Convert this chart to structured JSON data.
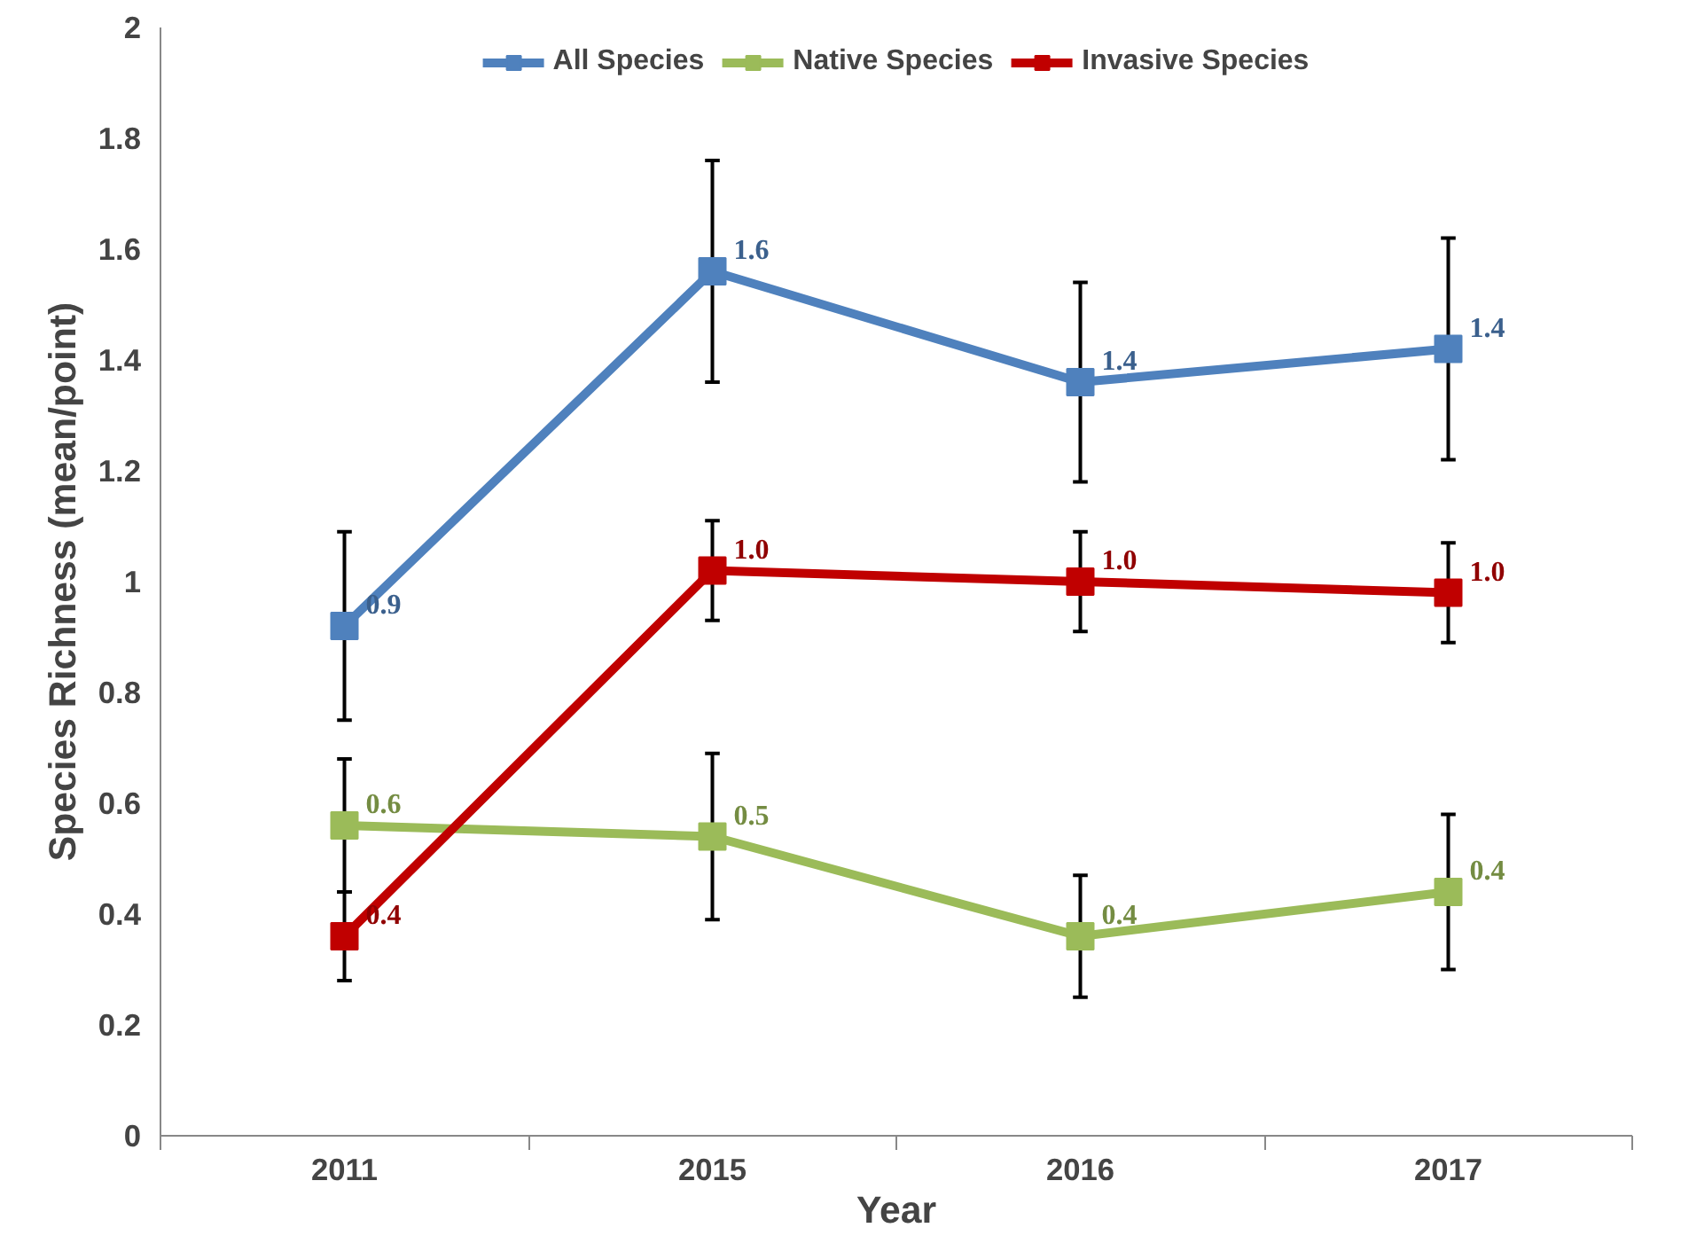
{
  "chart_data": {
    "type": "line",
    "xlabel": "Year",
    "ylabel": "Species Richness (mean/point)",
    "categories": [
      "2011",
      "2015",
      "2016",
      "2017"
    ],
    "ylim": [
      0,
      2
    ],
    "yticks": [
      0,
      0.2,
      0.4,
      0.6,
      0.8,
      1,
      1.2,
      1.4,
      1.6,
      1.8,
      2
    ],
    "grid": false,
    "legend": "top",
    "marker": "square",
    "line_style": "solid",
    "series": [
      {
        "name": "All Species",
        "color": "#4f81bd",
        "values": [
          0.92,
          1.56,
          1.36,
          1.42
        ],
        "errors": [
          [
            0.75,
            1.09
          ],
          [
            1.36,
            1.76
          ],
          [
            1.18,
            1.54
          ],
          [
            1.22,
            1.62
          ]
        ],
        "value_labels": [
          "0.9",
          "1.6",
          "1.4",
          "1.4"
        ]
      },
      {
        "name": "Native Species",
        "color": "#9bbb59",
        "values": [
          0.56,
          0.54,
          0.36,
          0.44
        ],
        "errors": [
          [
            0.44,
            0.68
          ],
          [
            0.39,
            0.69
          ],
          [
            0.25,
            0.47
          ],
          [
            0.3,
            0.58
          ]
        ],
        "value_labels": [
          "0.6",
          "0.5",
          "0.4",
          "0.4"
        ]
      },
      {
        "name": "Invasive Species",
        "color": "#c00000",
        "values": [
          0.36,
          1.02,
          1.0,
          0.98
        ],
        "errors": [
          [
            0.28,
            0.44
          ],
          [
            0.93,
            1.11
          ],
          [
            0.91,
            1.09
          ],
          [
            0.89,
            1.07
          ]
        ],
        "value_labels": [
          "0.4",
          "1.0",
          "1.0",
          "1.0"
        ]
      }
    ]
  }
}
